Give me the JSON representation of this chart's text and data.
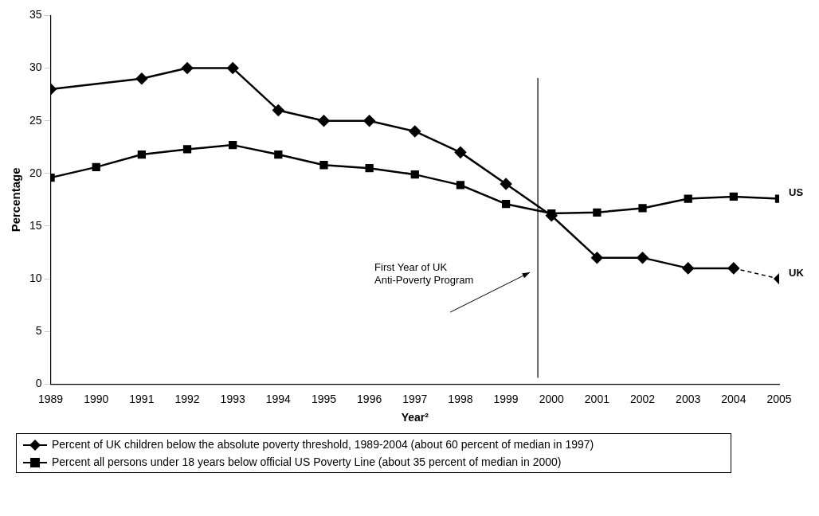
{
  "chart_data": {
    "type": "line",
    "xlabel": "Year²",
    "ylabel": "Percentage",
    "x": [
      1989,
      1990,
      1991,
      1992,
      1993,
      1994,
      1995,
      1996,
      1997,
      1998,
      1999,
      2000,
      2001,
      2002,
      2003,
      2004,
      2005
    ],
    "xlim": [
      1989,
      2005
    ],
    "xticks": [
      1989,
      1990,
      1991,
      1992,
      1993,
      1994,
      1995,
      1996,
      1997,
      1998,
      1999,
      2000,
      2001,
      2002,
      2003,
      2004,
      2005
    ],
    "ylim": [
      0,
      35
    ],
    "yticks": [
      0,
      5,
      10,
      15,
      20,
      25,
      30,
      35
    ],
    "grid": false,
    "legend": "bottom",
    "series": [
      {
        "name": "Percent of UK children below the absolute poverty threshold, 1989-2004 (about 60 percent of median in 1997)",
        "color": "#000000",
        "marker": "diamond",
        "line_style": "solid",
        "values": [
          28,
          null,
          29,
          30,
          30,
          26,
          25,
          25,
          24,
          22,
          19,
          16,
          12,
          12,
          11,
          11,
          null
        ]
      },
      {
        "name": "Percent all persons under 18 years below official US Poverty Line (about 35 percent of median in 2000)",
        "color": "#000000",
        "marker": "square",
        "line_style": "solid",
        "values": [
          19.6,
          20.6,
          21.8,
          22.3,
          22.7,
          21.8,
          20.8,
          20.5,
          19.9,
          18.9,
          17.1,
          16.2,
          16.3,
          16.7,
          17.6,
          17.8,
          17.6
        ]
      },
      {
        "color": "#000000",
        "marker": "diamond",
        "line_style": "dashed",
        "values": [
          null,
          null,
          null,
          null,
          null,
          null,
          null,
          null,
          null,
          null,
          null,
          null,
          null,
          null,
          null,
          11,
          10
        ]
      }
    ],
    "ref_lines": [
      {
        "axis": "x",
        "value": 1999.7,
        "color": "#000000",
        "line_style": "solid"
      }
    ],
    "annotations": [
      "First Year of UK Anti-Poverty Program",
      {
        "text": "US",
        "x": 2005,
        "y": 17.6
      },
      {
        "text": "UK",
        "x": 2005,
        "y": 10
      }
    ]
  }
}
